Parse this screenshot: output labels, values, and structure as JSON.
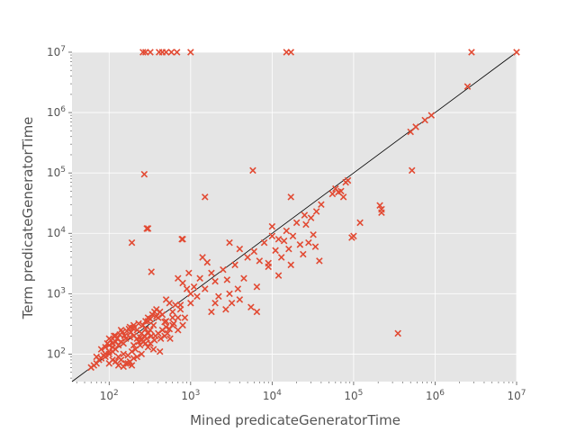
{
  "chart_data": {
    "type": "scatter",
    "xlabel": "Mined predicateGeneratorTime",
    "ylabel": "Term predicateGeneratorTime",
    "xscale": "log",
    "yscale": "log",
    "xlim": [
      35,
      10000000
    ],
    "ylim": [
      35,
      10000000
    ],
    "grid": true,
    "marker": "x",
    "colors": {
      "background": "#E5E5E5",
      "marker": "#E24A33",
      "reference_line": "#000000",
      "grid": "#FFFFFF",
      "text": "#555555"
    },
    "reference_line": "y = x",
    "x_ticks": [
      {
        "value": 100,
        "base": "10",
        "exp": "2"
      },
      {
        "value": 1000,
        "base": "10",
        "exp": "3"
      },
      {
        "value": 10000,
        "base": "10",
        "exp": "4"
      },
      {
        "value": 100000,
        "base": "10",
        "exp": "5"
      },
      {
        "value": 1000000,
        "base": "10",
        "exp": "6"
      },
      {
        "value": 10000000,
        "base": "10",
        "exp": "7"
      }
    ],
    "y_ticks": [
      {
        "value": 100,
        "base": "10",
        "exp": "2"
      },
      {
        "value": 1000,
        "base": "10",
        "exp": "3"
      },
      {
        "value": 10000,
        "base": "10",
        "exp": "4"
      },
      {
        "value": 100000,
        "base": "10",
        "exp": "5"
      },
      {
        "value": 1000000,
        "base": "10",
        "exp": "6"
      },
      {
        "value": 10000000,
        "base": "10",
        "exp": "7"
      }
    ],
    "series": [
      {
        "points": [
          [
            260,
            10000000
          ],
          [
            280,
            10000000
          ],
          [
            320,
            10000000
          ],
          [
            410,
            10000000
          ],
          [
            450,
            10000000
          ],
          [
            500,
            10000000
          ],
          [
            580,
            10000000
          ],
          [
            680,
            10000000
          ],
          [
            1000,
            10000000
          ],
          [
            15000,
            10000000
          ],
          [
            17000,
            10000000
          ],
          [
            2800000,
            10000000
          ],
          [
            10000000,
            10000000
          ],
          [
            2500000,
            2700000
          ],
          [
            900000,
            900000
          ],
          [
            750000,
            750000
          ],
          [
            580000,
            580000
          ],
          [
            500000,
            480000
          ],
          [
            520000,
            110000
          ],
          [
            5800,
            110000
          ],
          [
            270,
            95000
          ],
          [
            1500,
            40000
          ],
          [
            17000,
            40000
          ],
          [
            60000,
            55000
          ],
          [
            65000,
            48000
          ],
          [
            70000,
            50000
          ],
          [
            80000,
            70000
          ],
          [
            85000,
            75000
          ],
          [
            75000,
            40000
          ],
          [
            55000,
            45000
          ],
          [
            210000,
            29000
          ],
          [
            220000,
            25000
          ],
          [
            220000,
            22000
          ],
          [
            120000,
            15000
          ],
          [
            100000,
            9000
          ],
          [
            95000,
            8500
          ],
          [
            290,
            12000
          ],
          [
            300,
            12000
          ],
          [
            190,
            7000
          ],
          [
            330,
            2300
          ],
          [
            780,
            8000
          ],
          [
            800,
            8000
          ],
          [
            3000,
            7000
          ],
          [
            4000,
            5500
          ],
          [
            6000,
            5000
          ],
          [
            8000,
            7000
          ],
          [
            10000,
            9000
          ],
          [
            12000,
            8000
          ],
          [
            15000,
            11000
          ],
          [
            20000,
            15000
          ],
          [
            25000,
            20000
          ],
          [
            30000,
            18000
          ],
          [
            35000,
            23000
          ],
          [
            40000,
            30000
          ],
          [
            10000,
            13000
          ],
          [
            14000,
            7500
          ],
          [
            18000,
            9000
          ],
          [
            22000,
            6500
          ],
          [
            28000,
            7000
          ],
          [
            32000,
            9500
          ],
          [
            26000,
            14000
          ],
          [
            13000,
            4000
          ],
          [
            17000,
            3000
          ],
          [
            24000,
            4500
          ],
          [
            34000,
            6000
          ],
          [
            38000,
            3500
          ],
          [
            16000,
            5500
          ],
          [
            9000,
            3200
          ],
          [
            11000,
            5200
          ],
          [
            2500,
            2500
          ],
          [
            3500,
            3000
          ],
          [
            5000,
            4000
          ],
          [
            7000,
            3500
          ],
          [
            9000,
            2800
          ],
          [
            12000,
            2000
          ],
          [
            6500,
            1300
          ],
          [
            4500,
            1800
          ],
          [
            3800,
            1200
          ],
          [
            2800,
            1700
          ],
          [
            2000,
            1600
          ],
          [
            1500,
            1200
          ],
          [
            1800,
            2200
          ],
          [
            1400,
            4000
          ],
          [
            1600,
            3300
          ],
          [
            2200,
            900
          ],
          [
            3000,
            1000
          ],
          [
            4000,
            800
          ],
          [
            5500,
            600
          ],
          [
            6500,
            500
          ],
          [
            3200,
            700
          ],
          [
            2700,
            550
          ],
          [
            2000,
            700
          ],
          [
            1800,
            500
          ],
          [
            800,
            1500
          ],
          [
            900,
            1200
          ],
          [
            1000,
            1000
          ],
          [
            1200,
            900
          ],
          [
            1100,
            1300
          ],
          [
            700,
            1800
          ],
          [
            950,
            2200
          ],
          [
            1300,
            1800
          ],
          [
            1000,
            700
          ],
          [
            650,
            650
          ],
          [
            600,
            500
          ],
          [
            550,
            700
          ],
          [
            500,
            800
          ],
          [
            750,
            550
          ],
          [
            850,
            400
          ],
          [
            700,
            400
          ],
          [
            600,
            300
          ],
          [
            500,
            350
          ],
          [
            450,
            450
          ],
          [
            400,
            400
          ],
          [
            350,
            300
          ],
          [
            300,
            350
          ],
          [
            420,
            500
          ],
          [
            380,
            550
          ],
          [
            320,
            250
          ],
          [
            280,
            260
          ],
          [
            250,
            220
          ],
          [
            220,
            250
          ],
          [
            200,
            200
          ],
          [
            180,
            190
          ],
          [
            160,
            180
          ],
          [
            150,
            150
          ],
          [
            140,
            160
          ],
          [
            130,
            140
          ],
          [
            120,
            120
          ],
          [
            110,
            130
          ],
          [
            100,
            110
          ],
          [
            90,
            100
          ],
          [
            85,
            95
          ],
          [
            80,
            85
          ],
          [
            75,
            80
          ],
          [
            70,
            70
          ],
          [
            65,
            65
          ],
          [
            60,
            60
          ],
          [
            100,
            70
          ],
          [
            120,
            75
          ],
          [
            140,
            80
          ],
          [
            160,
            70
          ],
          [
            180,
            75
          ],
          [
            200,
            85
          ],
          [
            220,
            90
          ],
          [
            110,
            80
          ],
          [
            130,
            90
          ],
          [
            150,
            100
          ],
          [
            170,
            95
          ],
          [
            190,
            110
          ],
          [
            210,
            120
          ],
          [
            240,
            140
          ],
          [
            95,
            150
          ],
          [
            105,
            170
          ],
          [
            115,
            200
          ],
          [
            125,
            180
          ],
          [
            135,
            210
          ],
          [
            145,
            230
          ],
          [
            155,
            200
          ],
          [
            165,
            240
          ],
          [
            175,
            260
          ],
          [
            185,
            230
          ],
          [
            195,
            270
          ],
          [
            260,
            160
          ],
          [
            290,
            180
          ],
          [
            330,
            200
          ],
          [
            360,
            170
          ],
          [
            400,
            220
          ],
          [
            450,
            250
          ],
          [
            500,
            280
          ],
          [
            550,
            260
          ],
          [
            600,
            400
          ],
          [
            620,
            320
          ],
          [
            260,
            300
          ],
          [
            280,
            350
          ],
          [
            300,
            400
          ],
          [
            320,
            380
          ],
          [
            340,
            450
          ],
          [
            360,
            500
          ],
          [
            380,
            420
          ],
          [
            200,
            140
          ],
          [
            230,
            160
          ],
          [
            250,
            170
          ],
          [
            270,
            200
          ],
          [
            300,
            220
          ],
          [
            220,
            180
          ],
          [
            240,
            190
          ],
          [
            280,
            150
          ],
          [
            90,
            130
          ],
          [
            100,
            140
          ],
          [
            110,
            150
          ],
          [
            120,
            160
          ],
          [
            80,
            120
          ],
          [
            90,
            90
          ],
          [
            100,
            100
          ],
          [
            110,
            110
          ],
          [
            70,
            90
          ],
          [
            130,
            65
          ],
          [
            150,
            62
          ],
          [
            170,
            70
          ],
          [
            190,
            65
          ],
          [
            250,
            100
          ],
          [
            300,
            130
          ],
          [
            320,
            150
          ],
          [
            350,
            120
          ],
          [
            420,
            110
          ],
          [
            370,
            200
          ],
          [
            430,
            180
          ],
          [
            480,
            200
          ],
          [
            520,
            220
          ],
          [
            560,
            180
          ],
          [
            480,
            340
          ],
          [
            700,
            250
          ],
          [
            800,
            300
          ],
          [
            750,
            650
          ],
          [
            350000,
            220
          ],
          [
            200,
            300
          ],
          [
            230,
            320
          ],
          [
            180,
            280
          ],
          [
            100,
            180
          ],
          [
            120,
            200
          ],
          [
            140,
            250
          ]
        ]
      }
    ]
  }
}
